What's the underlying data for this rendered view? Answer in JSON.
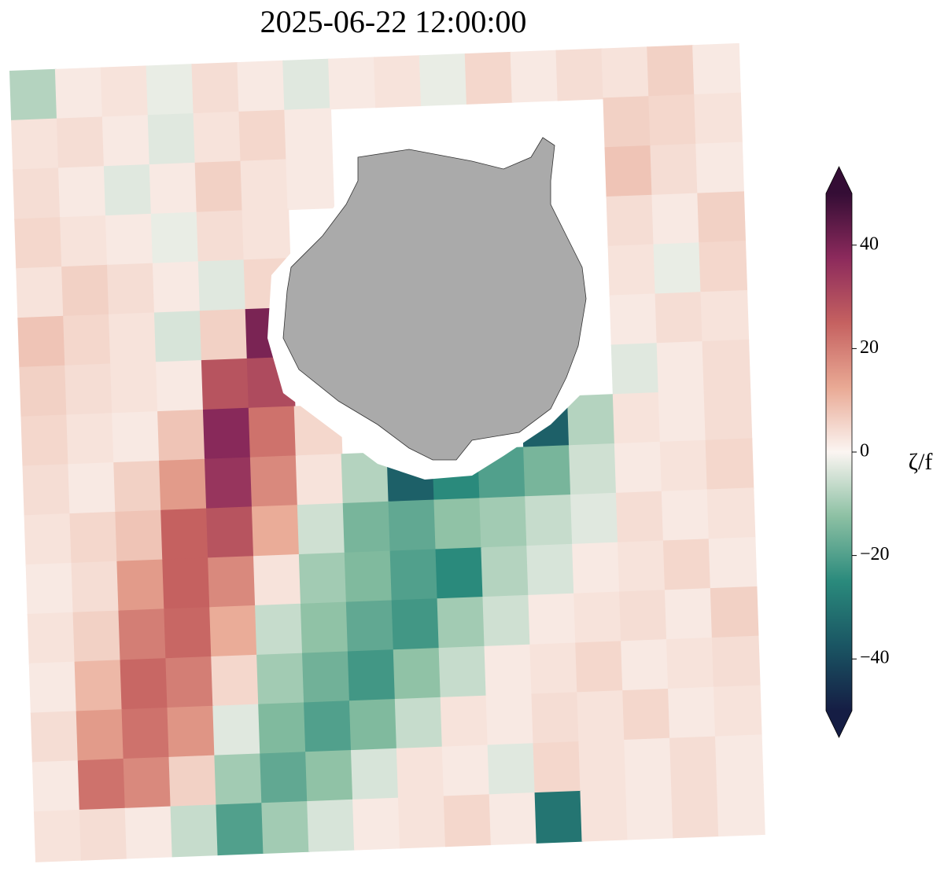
{
  "chart_data": {
    "type": "heatmap",
    "title": "2025-06-22 12:00:00",
    "z": [
      [
        -8,
        2,
        3,
        -2,
        4,
        2,
        -3,
        2,
        3,
        -2,
        5,
        2,
        4,
        3,
        6,
        2
      ],
      [
        3,
        4,
        2,
        -3,
        3,
        5,
        2,
        null,
        null,
        null,
        null,
        null,
        null,
        6,
        5,
        3
      ],
      [
        4,
        2,
        -3,
        2,
        6,
        3,
        2,
        null,
        null,
        null,
        null,
        null,
        null,
        8,
        4,
        2
      ],
      [
        5,
        3,
        2,
        -2,
        4,
        3,
        null,
        null,
        null,
        null,
        null,
        null,
        null,
        4,
        2,
        6
      ],
      [
        3,
        6,
        4,
        2,
        -3,
        5,
        null,
        null,
        null,
        null,
        null,
        null,
        null,
        3,
        -2,
        5
      ],
      [
        8,
        5,
        3,
        -4,
        6,
        40,
        null,
        null,
        null,
        null,
        null,
        null,
        null,
        2,
        4,
        3
      ],
      [
        6,
        4,
        3,
        2,
        28,
        30,
        null,
        null,
        null,
        null,
        null,
        null,
        null,
        -3,
        2,
        4
      ],
      [
        5,
        3,
        2,
        8,
        38,
        22,
        5,
        null,
        null,
        null,
        null,
        -35,
        -8,
        3,
        2,
        4
      ],
      [
        4,
        2,
        6,
        15,
        35,
        18,
        3,
        -8,
        -35,
        -25,
        -20,
        -15,
        -5,
        2,
        3,
        5
      ],
      [
        3,
        5,
        8,
        25,
        28,
        12,
        -5,
        -15,
        -18,
        -12,
        -10,
        -6,
        -3,
        4,
        2,
        3
      ],
      [
        2,
        4,
        15,
        25,
        18,
        3,
        -10,
        -14,
        -20,
        -25,
        -8,
        -4,
        2,
        3,
        5,
        2
      ],
      [
        3,
        6,
        20,
        24,
        12,
        -6,
        -12,
        -18,
        -22,
        -10,
        -5,
        2,
        3,
        4,
        2,
        6
      ],
      [
        2,
        10,
        24,
        20,
        5,
        -10,
        -16,
        -22,
        -12,
        -6,
        2,
        3,
        5,
        2,
        3,
        4
      ],
      [
        4,
        15,
        22,
        16,
        -3,
        -14,
        -20,
        -14,
        -6,
        3,
        2,
        4,
        3,
        5,
        2,
        3
      ],
      [
        2,
        22,
        18,
        6,
        -10,
        -18,
        -12,
        -4,
        3,
        2,
        -3,
        5,
        3,
        2,
        4,
        2
      ],
      [
        3,
        4,
        2,
        -6,
        -20,
        -10,
        -4,
        2,
        3,
        5,
        2,
        -30,
        3,
        2,
        4,
        2
      ]
    ],
    "clim": [
      -50,
      50
    ],
    "colormap": [
      "#151d44",
      "#1a5563",
      "#2a8a7c",
      "#8cc0a3",
      "#fbf5f2",
      "#e9a994",
      "#c56160",
      "#8c2a5c",
      "#340d35"
    ],
    "colorbar": {
      "label": "ζ/f",
      "extend": "both",
      "ticks": [
        {
          "value": -40,
          "label": "−40"
        },
        {
          "value": -20,
          "label": "−20"
        },
        0,
        20,
        40
      ]
    }
  }
}
